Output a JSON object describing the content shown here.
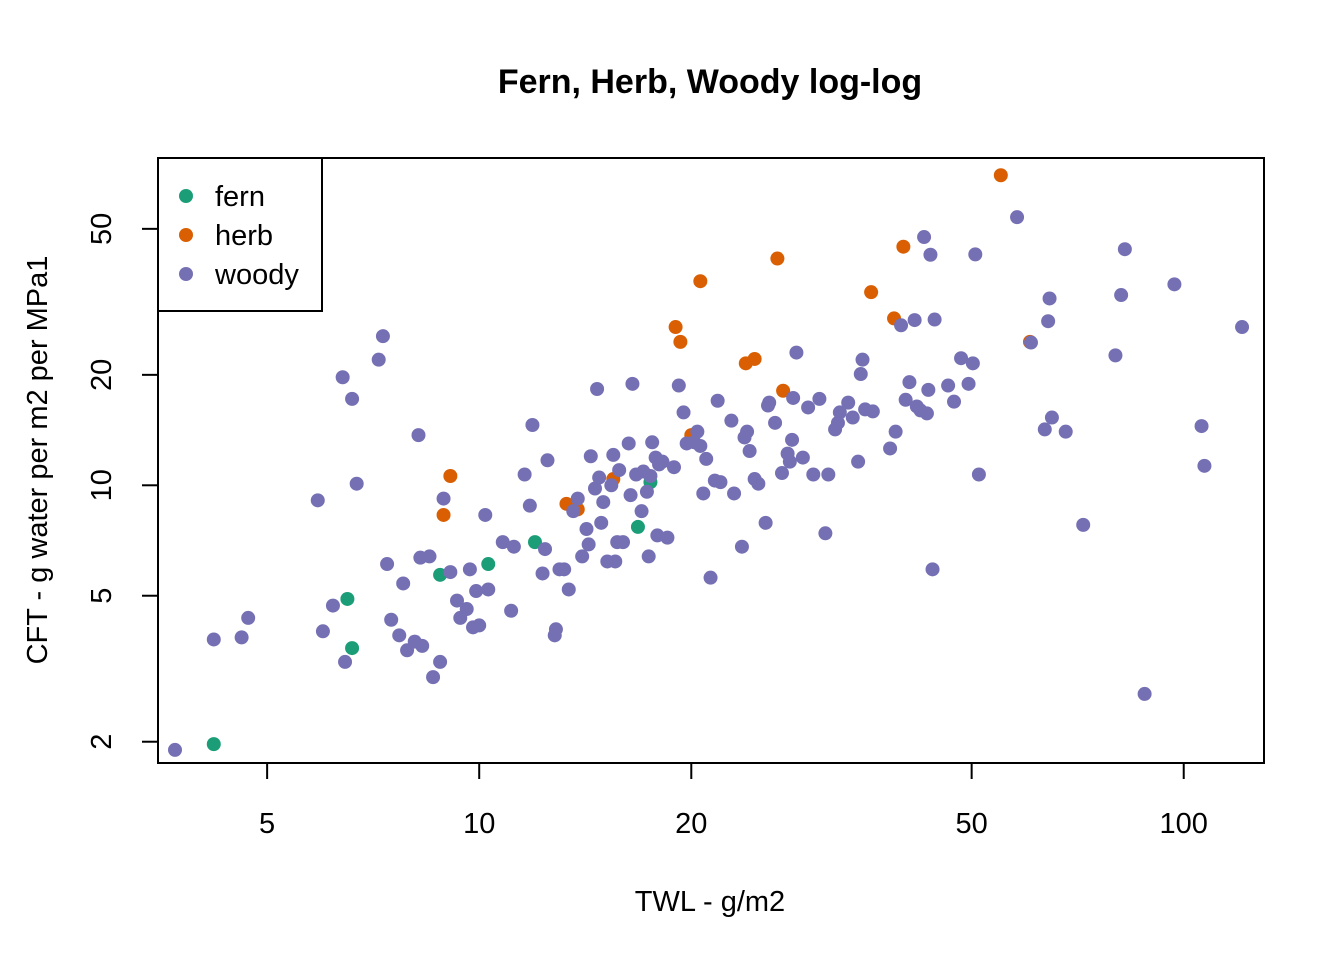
{
  "chart_data": {
    "type": "scatter",
    "title": "Fern, Herb, Woody log-log",
    "xlabel": "TWL - g/m2",
    "ylabel": "CFT - g water per m2 per MPa1",
    "x_scale": "log",
    "y_scale": "log",
    "xlim": [
      3.5,
      130
    ],
    "ylim": [
      1.75,
      78
    ],
    "x_ticks": [
      5,
      10,
      20,
      50,
      100
    ],
    "x_tick_labels": [
      "5",
      "10",
      "20",
      "50",
      "100"
    ],
    "y_ticks": [
      2,
      5,
      10,
      20,
      50
    ],
    "y_tick_labels": [
      "2",
      "5",
      "10",
      "20",
      "50"
    ],
    "grid": false,
    "legend_position": "top-left",
    "series": [
      {
        "name": "fern",
        "color": "#1b9e77",
        "points": [
          [
            4.2,
            1.97
          ],
          [
            6.5,
            4.9
          ],
          [
            6.6,
            3.6
          ],
          [
            8.8,
            5.7
          ],
          [
            10.3,
            6.1
          ],
          [
            12.0,
            7.0
          ],
          [
            16.8,
            7.7
          ],
          [
            17.5,
            10.2
          ]
        ]
      },
      {
        "name": "herb",
        "color": "#d95f02",
        "points": [
          [
            9.1,
            10.6
          ],
          [
            8.9,
            8.3
          ],
          [
            13.3,
            8.9
          ],
          [
            13.8,
            8.6
          ],
          [
            15.5,
            10.4
          ],
          [
            19.0,
            27.0
          ],
          [
            19.3,
            24.6
          ],
          [
            20.0,
            13.7
          ],
          [
            20.6,
            36.0
          ],
          [
            23.9,
            21.5
          ],
          [
            24.6,
            22.1
          ],
          [
            26.5,
            41.5
          ],
          [
            27.0,
            18.1
          ],
          [
            36.0,
            33.6
          ],
          [
            38.8,
            28.5
          ],
          [
            40.0,
            44.7
          ],
          [
            55.0,
            70.0
          ],
          [
            60.5,
            24.6
          ]
        ]
      },
      {
        "name": "woody",
        "color": "#7570b3",
        "points": [
          [
            3.7,
            1.9
          ],
          [
            4.2,
            3.8
          ],
          [
            4.6,
            3.85
          ],
          [
            4.7,
            4.35
          ],
          [
            5.9,
            9.1
          ],
          [
            6.0,
            4.0
          ],
          [
            6.2,
            4.7
          ],
          [
            6.4,
            19.7
          ],
          [
            6.45,
            3.3
          ],
          [
            6.6,
            17.2
          ],
          [
            6.7,
            10.1
          ],
          [
            7.2,
            22.0
          ],
          [
            7.3,
            25.5
          ],
          [
            7.4,
            6.1
          ],
          [
            7.5,
            4.3
          ],
          [
            7.7,
            3.9
          ],
          [
            7.8,
            5.4
          ],
          [
            7.9,
            3.55
          ],
          [
            8.1,
            3.75
          ],
          [
            8.2,
            13.7
          ],
          [
            8.25,
            6.35
          ],
          [
            8.3,
            3.65
          ],
          [
            8.5,
            6.4
          ],
          [
            8.6,
            3.0
          ],
          [
            8.8,
            3.3
          ],
          [
            8.9,
            9.2
          ],
          [
            9.1,
            5.8
          ],
          [
            9.3,
            4.85
          ],
          [
            9.4,
            4.35
          ],
          [
            9.6,
            4.6
          ],
          [
            9.7,
            5.9
          ],
          [
            9.8,
            4.1
          ],
          [
            9.9,
            5.15
          ],
          [
            10.0,
            4.15
          ],
          [
            10.2,
            8.3
          ],
          [
            10.3,
            5.2
          ],
          [
            10.8,
            7.0
          ],
          [
            11.1,
            4.55
          ],
          [
            11.2,
            6.8
          ],
          [
            11.6,
            10.7
          ],
          [
            11.8,
            8.8
          ],
          [
            11.9,
            14.6
          ],
          [
            12.3,
            5.75
          ],
          [
            12.4,
            6.7
          ],
          [
            12.5,
            11.7
          ],
          [
            12.8,
            3.9
          ],
          [
            12.85,
            4.05
          ],
          [
            13.0,
            5.9
          ],
          [
            13.2,
            5.9
          ],
          [
            13.4,
            5.2
          ],
          [
            13.6,
            8.5
          ],
          [
            13.8,
            9.2
          ],
          [
            14.0,
            6.4
          ],
          [
            14.2,
            7.6
          ],
          [
            14.3,
            6.9
          ],
          [
            14.4,
            12.0
          ],
          [
            14.6,
            9.8
          ],
          [
            14.7,
            18.3
          ],
          [
            14.8,
            10.5
          ],
          [
            14.9,
            7.9
          ],
          [
            15.0,
            9.0
          ],
          [
            15.2,
            6.2
          ],
          [
            15.4,
            10.0
          ],
          [
            15.5,
            12.1
          ],
          [
            15.6,
            6.2
          ],
          [
            15.7,
            7.0
          ],
          [
            15.8,
            11.0
          ],
          [
            16.0,
            7.0
          ],
          [
            16.3,
            13.0
          ],
          [
            16.4,
            9.4
          ],
          [
            16.5,
            18.9
          ],
          [
            16.7,
            10.7
          ],
          [
            17.0,
            8.5
          ],
          [
            17.1,
            10.9
          ],
          [
            17.3,
            9.6
          ],
          [
            17.4,
            6.4
          ],
          [
            17.5,
            10.6
          ],
          [
            17.6,
            13.1
          ],
          [
            17.8,
            11.9
          ],
          [
            17.9,
            7.3
          ],
          [
            18.0,
            11.4
          ],
          [
            18.2,
            11.6
          ],
          [
            18.5,
            7.2
          ],
          [
            18.9,
            11.2
          ],
          [
            19.2,
            18.7
          ],
          [
            19.5,
            15.8
          ],
          [
            19.7,
            13.0
          ],
          [
            20.2,
            13.1
          ],
          [
            20.4,
            14.0
          ],
          [
            20.6,
            12.8
          ],
          [
            20.8,
            9.5
          ],
          [
            21.0,
            11.8
          ],
          [
            21.3,
            5.6
          ],
          [
            21.6,
            10.3
          ],
          [
            21.8,
            17.0
          ],
          [
            22.0,
            10.2
          ],
          [
            22.8,
            15.0
          ],
          [
            23.0,
            9.5
          ],
          [
            23.6,
            6.8
          ],
          [
            23.8,
            13.5
          ],
          [
            24.0,
            14.0
          ],
          [
            24.2,
            12.4
          ],
          [
            24.6,
            10.4
          ],
          [
            24.9,
            10.1
          ],
          [
            25.5,
            7.9
          ],
          [
            25.7,
            16.5
          ],
          [
            25.8,
            16.8
          ],
          [
            26.3,
            14.8
          ],
          [
            26.9,
            10.8
          ],
          [
            27.4,
            12.2
          ],
          [
            27.6,
            11.6
          ],
          [
            27.8,
            13.3
          ],
          [
            27.9,
            17.3
          ],
          [
            28.2,
            23.0
          ],
          [
            28.8,
            11.9
          ],
          [
            29.3,
            16.3
          ],
          [
            29.8,
            10.7
          ],
          [
            30.4,
            17.2
          ],
          [
            31.0,
            7.4
          ],
          [
            31.3,
            10.7
          ],
          [
            32.0,
            14.2
          ],
          [
            32.3,
            14.8
          ],
          [
            32.5,
            15.8
          ],
          [
            33.4,
            16.8
          ],
          [
            33.9,
            15.3
          ],
          [
            34.5,
            11.6
          ],
          [
            34.8,
            20.1
          ],
          [
            35.0,
            22.0
          ],
          [
            35.3,
            16.1
          ],
          [
            36.2,
            15.9
          ],
          [
            38.3,
            12.6
          ],
          [
            39.0,
            14.0
          ],
          [
            39.7,
            27.3
          ],
          [
            40.3,
            17.1
          ],
          [
            40.8,
            19.1
          ],
          [
            41.5,
            28.2
          ],
          [
            41.8,
            16.4
          ],
          [
            42.3,
            16.0
          ],
          [
            42.8,
            47.5
          ],
          [
            43.2,
            15.7
          ],
          [
            43.4,
            18.2
          ],
          [
            43.7,
            42.5
          ],
          [
            44.0,
            5.9
          ],
          [
            44.3,
            28.3
          ],
          [
            46.3,
            18.7
          ],
          [
            47.2,
            16.9
          ],
          [
            48.3,
            22.2
          ],
          [
            49.5,
            18.9
          ],
          [
            50.2,
            21.5
          ],
          [
            50.6,
            42.6
          ],
          [
            51.2,
            10.7
          ],
          [
            58.0,
            53.8
          ],
          [
            60.7,
            24.5
          ],
          [
            63.5,
            14.2
          ],
          [
            64.2,
            28.0
          ],
          [
            64.5,
            32.3
          ],
          [
            65.0,
            15.3
          ],
          [
            68.0,
            14.0
          ],
          [
            72.0,
            7.8
          ],
          [
            80.0,
            22.6
          ],
          [
            81.5,
            33.0
          ],
          [
            82.5,
            44.0
          ],
          [
            88.0,
            2.7
          ],
          [
            97.0,
            35.3
          ],
          [
            106.0,
            14.5
          ],
          [
            107.0,
            11.3
          ],
          [
            121.0,
            27.0
          ]
        ]
      }
    ]
  }
}
